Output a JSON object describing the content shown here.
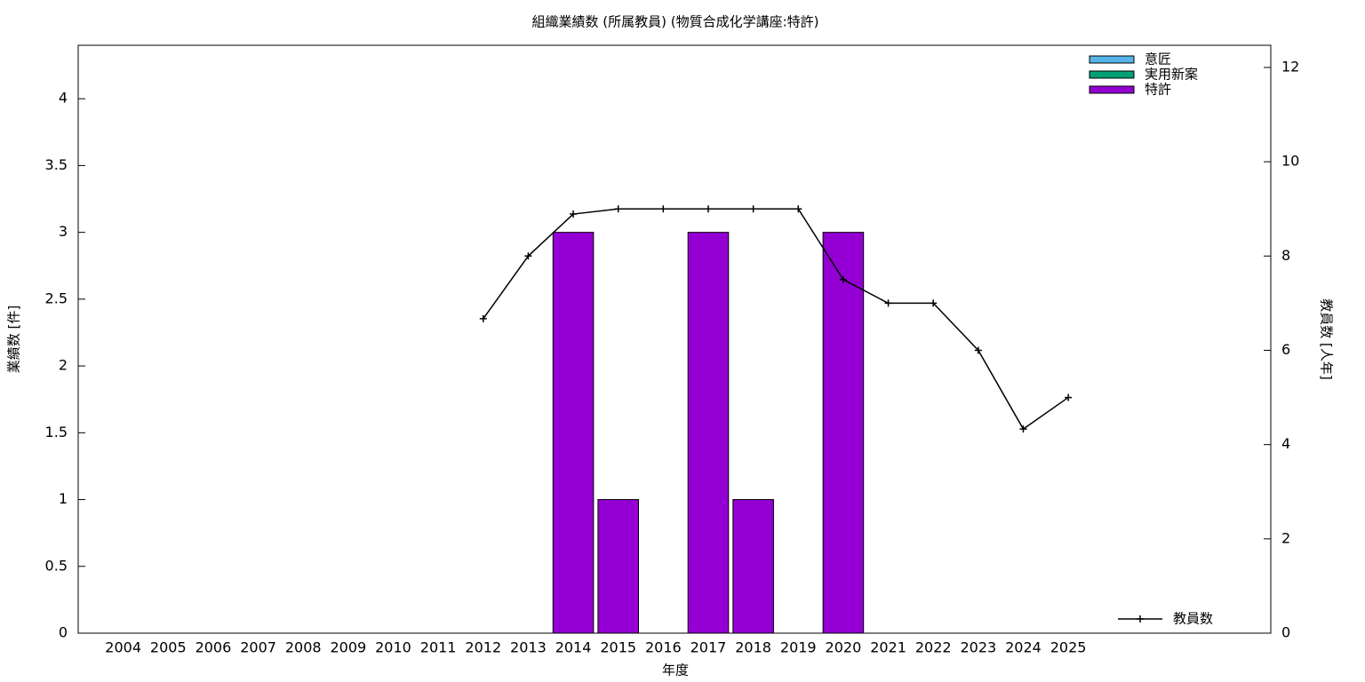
{
  "chart_data": {
    "type": "bar",
    "stacked": true,
    "title": "組織業績数 (所属教員) (物質合成化学講座:特許)",
    "x_label": "年度",
    "y_label": "業績数 [件]",
    "y2_label": "教員数 [人年]",
    "categories": [
      "2004",
      "2005",
      "2006",
      "2007",
      "2008",
      "2009",
      "2010",
      "2011",
      "2012",
      "2013",
      "2014",
      "2015",
      "2016",
      "2017",
      "2018",
      "2019",
      "2020",
      "2021",
      "2022",
      "2023",
      "2024",
      "2025"
    ],
    "series": [
      {
        "name": "意匠",
        "type": "bar",
        "color": "#56b4e9",
        "values": [
          0,
          0,
          0,
          0,
          0,
          0,
          0,
          0,
          0,
          0,
          0,
          0,
          0,
          0,
          0,
          0,
          0,
          0,
          0,
          0,
          0,
          0
        ]
      },
      {
        "name": "実用新案",
        "type": "bar",
        "color": "#009e73",
        "values": [
          0,
          0,
          0,
          0,
          0,
          0,
          0,
          0,
          0,
          0,
          0,
          0,
          0,
          0,
          0,
          0,
          0,
          0,
          0,
          0,
          0,
          0
        ]
      },
      {
        "name": "特許",
        "type": "bar",
        "color": "#9400d3",
        "values": [
          0,
          0,
          0,
          0,
          0,
          0,
          0,
          0,
          0,
          0,
          3,
          1,
          0,
          3,
          1,
          0,
          3,
          0,
          0,
          0,
          0,
          0
        ]
      },
      {
        "name": "教員数",
        "type": "line",
        "axis": "y2",
        "color": "#000000",
        "values": [
          null,
          null,
          null,
          null,
          null,
          null,
          null,
          null,
          6.67,
          8,
          8.89,
          9,
          9,
          9,
          9,
          9,
          7.5,
          7,
          7,
          6,
          4.33,
          5
        ]
      }
    ],
    "ylim": [
      0,
      4.4
    ],
    "yticks": [
      0,
      0.5,
      1,
      1.5,
      2,
      2.5,
      3,
      3.5,
      4
    ],
    "y2lim": [
      0,
      12.47
    ],
    "y2ticks": [
      0,
      2,
      4,
      6,
      8,
      10,
      12
    ]
  }
}
